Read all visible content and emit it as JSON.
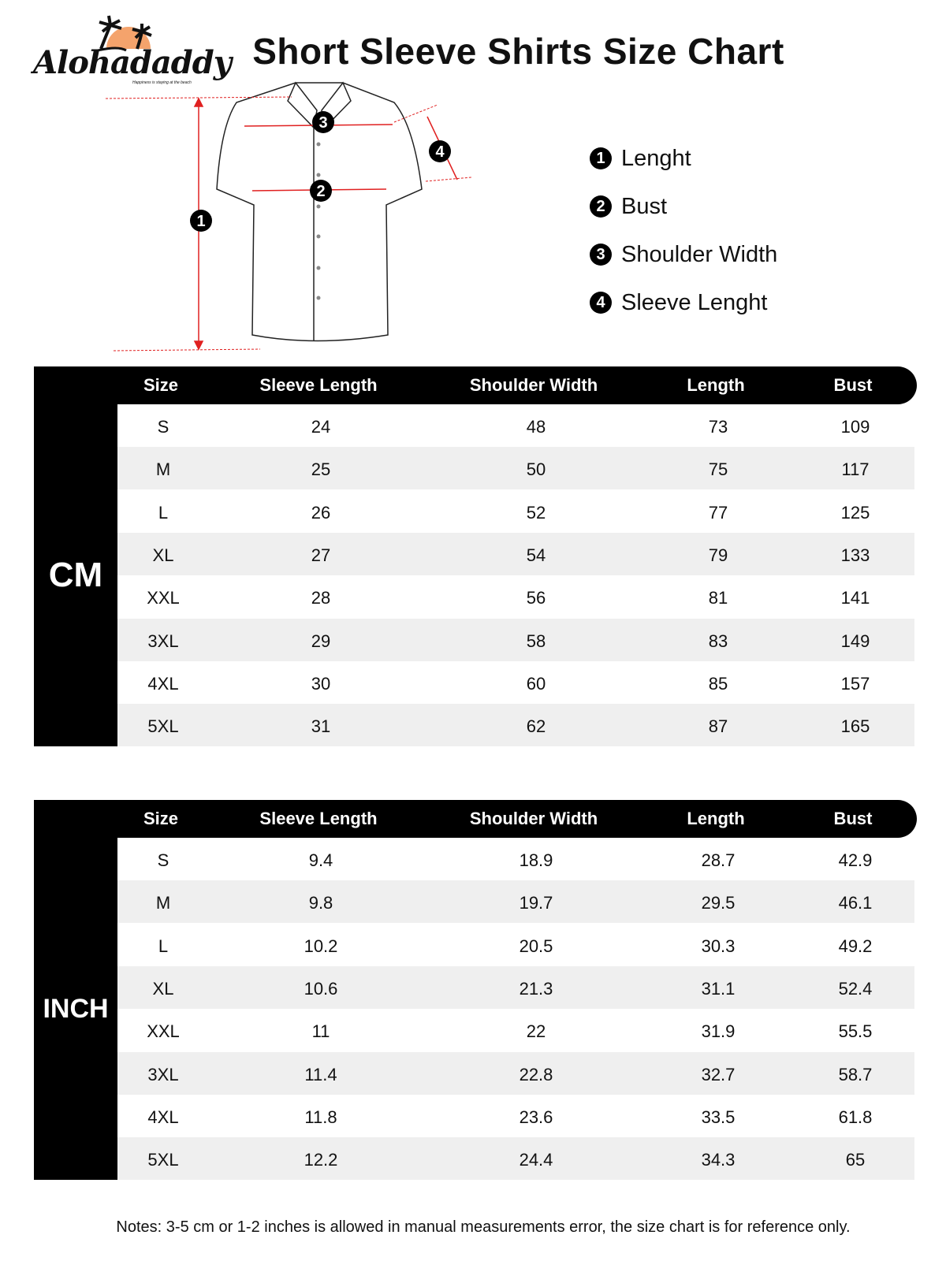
{
  "logo": {
    "brand": "Alohadaddy",
    "tagline": "Happiness is staying at the beach",
    "colors": {
      "sun": "#f4a36c"
    }
  },
  "title": "Short Sleeve Shirts Size Chart",
  "diagram": {
    "markers": [
      "1",
      "2",
      "3",
      "4"
    ]
  },
  "legend": [
    {
      "num": "1",
      "label": "Lenght"
    },
    {
      "num": "2",
      "label": "Bust"
    },
    {
      "num": "3",
      "label": "Shoulder Width"
    },
    {
      "num": "4",
      "label": "Sleeve Lenght"
    }
  ],
  "columns": [
    "Size",
    "Sleeve Length",
    "Shoulder Width",
    "Length",
    "Bust"
  ],
  "tables": [
    {
      "unit": "CM",
      "rows": [
        [
          "S",
          "24",
          "48",
          "73",
          "109"
        ],
        [
          "M",
          "25",
          "50",
          "75",
          "117"
        ],
        [
          "L",
          "26",
          "52",
          "77",
          "125"
        ],
        [
          "XL",
          "27",
          "54",
          "79",
          "133"
        ],
        [
          "XXL",
          "28",
          "56",
          "81",
          "141"
        ],
        [
          "3XL",
          "29",
          "58",
          "83",
          "149"
        ],
        [
          "4XL",
          "30",
          "60",
          "85",
          "157"
        ],
        [
          "5XL",
          "31",
          "62",
          "87",
          "165"
        ]
      ]
    },
    {
      "unit": "INCH",
      "rows": [
        [
          "S",
          "9.4",
          "18.9",
          "28.7",
          "42.9"
        ],
        [
          "M",
          "9.8",
          "19.7",
          "29.5",
          "46.1"
        ],
        [
          "L",
          "10.2",
          "20.5",
          "30.3",
          "49.2"
        ],
        [
          "XL",
          "10.6",
          "21.3",
          "31.1",
          "52.4"
        ],
        [
          "XXL",
          "11",
          "22",
          "31.9",
          "55.5"
        ],
        [
          "3XL",
          "11.4",
          "22.8",
          "32.7",
          "58.7"
        ],
        [
          "4XL",
          "11.8",
          "23.6",
          "33.5",
          "61.8"
        ],
        [
          "5XL",
          "12.2",
          "24.4",
          "34.3",
          "65"
        ]
      ]
    }
  ],
  "notes": "Notes: 3-5 cm or 1-2 inches is allowed in manual measurements error, the size chart is for reference only.",
  "colors": {
    "header": "#000000",
    "alt_row": "#efefef",
    "measure": "#e02020"
  }
}
